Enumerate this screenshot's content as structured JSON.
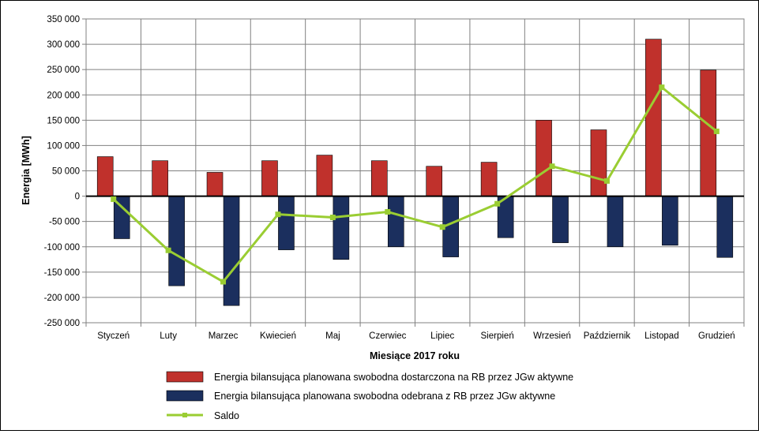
{
  "chart_data": {
    "type": "bar",
    "title": "",
    "xlabel": "Miesiące 2017  roku",
    "ylabel": "Energia [MWh]",
    "ylim": [
      -250000,
      350000
    ],
    "ytick_step": 50000,
    "ytick_labels": [
      "350 000",
      "300 000",
      "250 000",
      "200 000",
      "150 000",
      "100 000",
      "50 000",
      "0",
      "-50 000",
      "-100 000",
      "-150 000",
      "-200 000",
      "-250 000"
    ],
    "grid": true,
    "legend_position": "bottom",
    "categories": [
      "Styczeń",
      "Luty",
      "Marzec",
      "Kwiecień",
      "Maj",
      "Czerwiec",
      "Lipiec",
      "Sierpień",
      "Wrzesień",
      "Październik",
      "Listopad",
      "Grudzień"
    ],
    "series": [
      {
        "name": "Energia bilansująca planowana swobodna dostarczona na RB przez JGw aktywne",
        "type": "bar",
        "color": "#c0312c",
        "values": [
          78000,
          70000,
          47000,
          70000,
          81000,
          70000,
          59000,
          67000,
          150000,
          131000,
          310000,
          249000
        ]
      },
      {
        "name": "Energia bilansująca planowana swobodna odebrana z RB przez JGw aktywne",
        "type": "bar",
        "color": "#1b2f5e",
        "values": [
          -84000,
          -177000,
          -216000,
          -106000,
          -125000,
          -100000,
          -120000,
          -82000,
          -92000,
          -100000,
          -97000,
          -121000
        ]
      },
      {
        "name": "Saldo",
        "type": "line",
        "color": "#9acd32",
        "values": [
          -6000,
          -107000,
          -169000,
          -36000,
          -42000,
          -31000,
          -61000,
          -15000,
          59000,
          30000,
          215000,
          128000
        ]
      }
    ]
  }
}
